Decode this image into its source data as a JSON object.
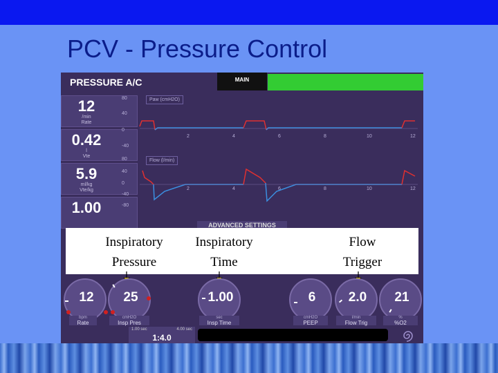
{
  "slide": {
    "title": "PCV - Pressure Control"
  },
  "header": {
    "mode": "PRESSURE A/C",
    "main_button": "MAIN"
  },
  "left_values": [
    {
      "value": "12",
      "unit": "/min",
      "label": "Rate"
    },
    {
      "value": "0.42",
      "unit": "l",
      "label": "Vte"
    },
    {
      "value": "5.9",
      "unit": "ml/kg",
      "label": "Vte/kg"
    },
    {
      "value": "1.00",
      "unit": "",
      "label": ""
    }
  ],
  "pressure_graph": {
    "title": "Paw (cmH2O)",
    "y_ticks": [
      "80",
      "40",
      "0",
      "-40"
    ],
    "x_ticks": [
      "2",
      "4",
      "6",
      "8",
      "10",
      "12"
    ]
  },
  "flow_graph": {
    "title": "Flow (l/min)",
    "y_ticks": [
      "80",
      "40",
      "0",
      "-40",
      "-80"
    ],
    "x_ticks": [
      "2",
      "4",
      "6",
      "8",
      "10",
      "12"
    ]
  },
  "advanced_settings": "ADVANCED SETTINGS",
  "annotations": {
    "insp_pressure": [
      "Inspiratory",
      "Pressure"
    ],
    "insp_time": [
      "Inspiratory",
      "Time"
    ],
    "flow_trigger": [
      "Flow",
      "Trigger"
    ]
  },
  "knobs": [
    {
      "value": "12",
      "unit": "bpm",
      "label": "Rate"
    },
    {
      "value": "25",
      "unit": "cmH2O",
      "label": "Insp Pres"
    },
    {
      "value": "1.00",
      "unit": "sec",
      "label": "Insp Time"
    },
    {
      "value": "6",
      "unit": "cmH2O",
      "label": "PEEP"
    },
    {
      "value": "2.0",
      "unit": "l/min",
      "label": "Flow Trig"
    },
    {
      "value": "21",
      "unit": "%",
      "label": "%O2"
    }
  ],
  "ie_ratio": {
    "low": "1.00 sec",
    "high": "4.00 sec",
    "ratio": "1:4.0"
  },
  "colors": {
    "panel": "#3a2d5c",
    "pressure_trace": "#e03030",
    "flow_trace": "#3b8fe0",
    "green_bar": "#33cc33"
  }
}
